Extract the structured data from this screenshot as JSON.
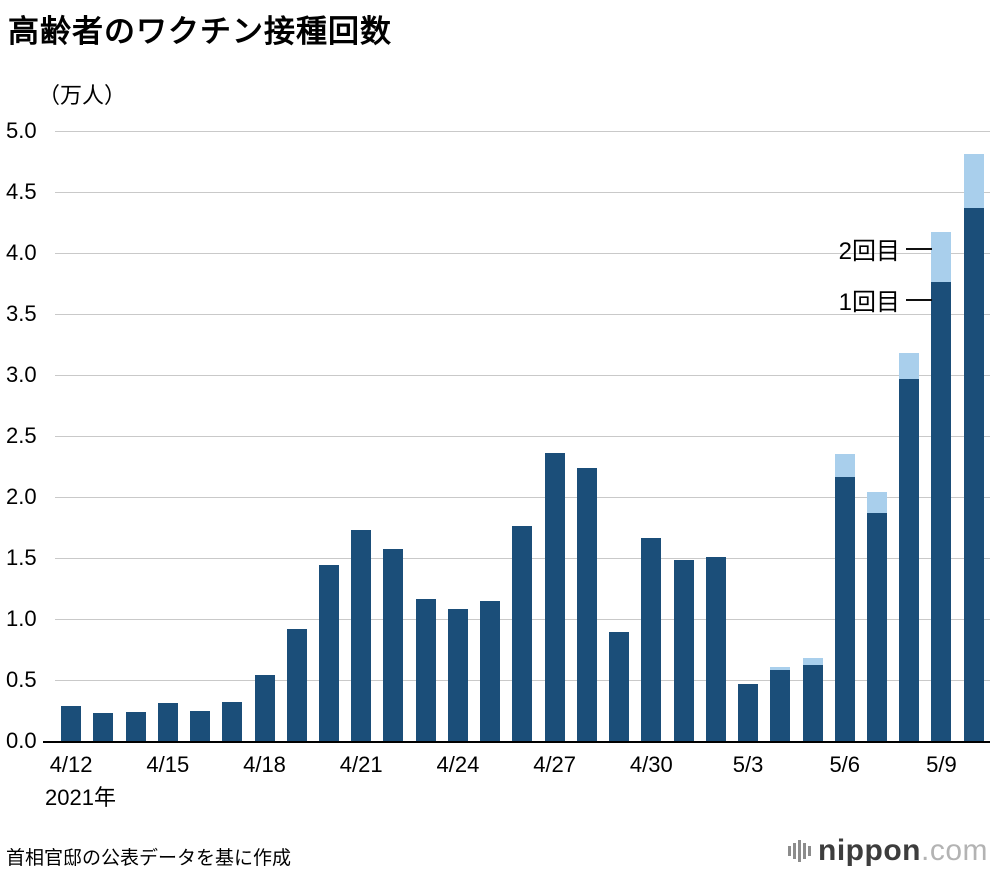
{
  "chart_data": {
    "type": "bar",
    "stacked": true,
    "title": "高齢者のワクチン接種回数",
    "unit_label": "（万人）",
    "ylim": [
      0,
      5.0
    ],
    "ytick_step": 0.5,
    "yticks": [
      "5.0",
      "4.5",
      "4.0",
      "3.5",
      "3.0",
      "2.5",
      "2.0",
      "1.5",
      "1.0",
      "0.5",
      "0.0"
    ],
    "grid": true,
    "x": [
      "4/12",
      "4/13",
      "4/14",
      "4/15",
      "4/16",
      "4/17",
      "4/18",
      "4/19",
      "4/20",
      "4/21",
      "4/22",
      "4/23",
      "4/24",
      "4/25",
      "4/26",
      "4/27",
      "4/28",
      "4/29",
      "4/30",
      "5/1",
      "5/2",
      "5/3",
      "5/4",
      "5/5",
      "5/6",
      "5/7",
      "5/8",
      "5/9",
      "5/10"
    ],
    "xtick_labels": {
      "0": "4/12",
      "3": "4/15",
      "6": "4/18",
      "9": "4/21",
      "12": "4/24",
      "15": "4/27",
      "18": "4/30",
      "21": "5/3",
      "24": "5/6",
      "27": "5/9"
    },
    "series": [
      {
        "name": "1回目",
        "color": "#1b4e79",
        "values": [
          0.29,
          0.23,
          0.24,
          0.31,
          0.25,
          0.32,
          0.54,
          0.92,
          1.44,
          1.73,
          1.57,
          1.16,
          1.08,
          1.15,
          1.76,
          2.36,
          2.24,
          0.89,
          1.66,
          1.48,
          1.51,
          0.47,
          0.58,
          0.62,
          2.16,
          1.87,
          2.97,
          3.76,
          4.37
        ]
      },
      {
        "name": "2回目",
        "color": "#a9cfec",
        "values": [
          0,
          0,
          0,
          0,
          0,
          0,
          0,
          0,
          0,
          0,
          0,
          0,
          0,
          0,
          0,
          0,
          0,
          0,
          0,
          0,
          0,
          0,
          0.03,
          0.06,
          0.19,
          0.17,
          0.21,
          0.41,
          0.44
        ]
      }
    ],
    "year_label": "2021年",
    "legend_position": "annotations-right"
  },
  "footer": {
    "source": "首相官邸の公表データを基に作成",
    "logo": {
      "main": "nippon",
      "suffix": ".com"
    }
  }
}
